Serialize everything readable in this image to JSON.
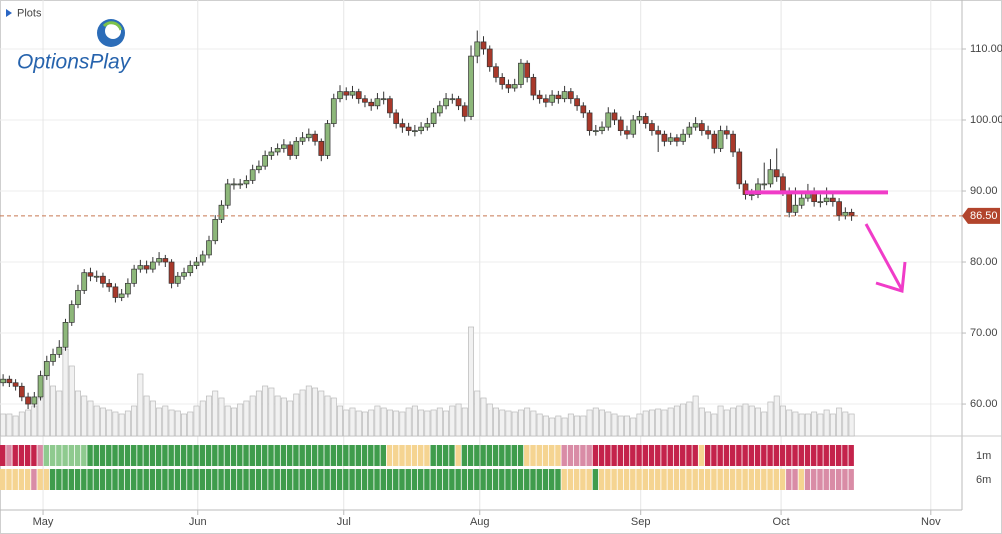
{
  "chart_data": {
    "type": "candlestick",
    "menu": "Plots",
    "logo": "OptionsPlay",
    "xlim": [
      -0.5,
      153.7
    ],
    "xticks": [
      {
        "value": 6.4,
        "label": "May"
      },
      {
        "value": 31.2,
        "label": "Jun"
      },
      {
        "value": 54.6,
        "label": "Jul"
      },
      {
        "value": 76.4,
        "label": "Aug"
      },
      {
        "value": 102.2,
        "label": "Sep"
      },
      {
        "value": 124.7,
        "label": "Oct"
      },
      {
        "value": 148.7,
        "label": "Nov"
      }
    ],
    "ylim": [
      55.5,
      116.9
    ],
    "yticks": [
      {
        "value": 60,
        "label": "60.00"
      },
      {
        "value": 70,
        "label": "70.00"
      },
      {
        "value": 80,
        "label": "80.00"
      },
      {
        "value": 90,
        "label": "90.00"
      },
      {
        "value": 100,
        "label": "100.00"
      },
      {
        "value": 110,
        "label": "110.00"
      }
    ],
    "grid": true,
    "up_color": "#8db77a",
    "down_color": "#a8382a",
    "last_price": {
      "value": 86.5,
      "label": "86.50"
    },
    "resistance": 89.8,
    "open": [
      63,
      63.5,
      63,
      62.5,
      61,
      60,
      61,
      64,
      66,
      67,
      68,
      71.5,
      74,
      76,
      78.5,
      78,
      78,
      77,
      76.5,
      75,
      75.5,
      77,
      79,
      79.5,
      79,
      80,
      80.5,
      80,
      77,
      78,
      78.5,
      79.5,
      80,
      81,
      83,
      86,
      88,
      91,
      91,
      91,
      91.5,
      93,
      93.5,
      95,
      95.5,
      96,
      96.5,
      95,
      97,
      97.5,
      98,
      97,
      95,
      99.5,
      103,
      104,
      103.5,
      104,
      103,
      102.5,
      102,
      103,
      103,
      101,
      99.5,
      99,
      98.5,
      98.5,
      99,
      99.5,
      101,
      102,
      103,
      103,
      102,
      100.5,
      109,
      111,
      110,
      107.5,
      106,
      105,
      104.5,
      105,
      108,
      106,
      103.5,
      103,
      102.5,
      103.5,
      103,
      104,
      103,
      102,
      101,
      98.5,
      98.5,
      99,
      101,
      100,
      98.5,
      98,
      100,
      100.5,
      99.5,
      98.5,
      98,
      97,
      97.5,
      97,
      98,
      99,
      99.5,
      98.5,
      98,
      96,
      98.5,
      98,
      95.5,
      91,
      89.5,
      89.5,
      91,
      91,
      93,
      92,
      90,
      87,
      88,
      89,
      90,
      88.5,
      88.5,
      89,
      88.5,
      86.5,
      87
    ],
    "high": [
      64.2,
      64,
      63.5,
      63,
      61.6,
      61.7,
      64.7,
      66.8,
      67.8,
      69,
      72,
      74.6,
      76.8,
      79,
      79.2,
      78.8,
      78.5,
      77.6,
      77,
      76.2,
      77.7,
      79.6,
      80.3,
      80.2,
      80.7,
      81.4,
      81,
      80.4,
      78.6,
      79.2,
      80.2,
      80.7,
      81.6,
      83.7,
      86.6,
      88.7,
      91.7,
      91.8,
      91.7,
      92.2,
      93.7,
      94.3,
      95.7,
      96.2,
      96.7,
      97.3,
      97,
      97.6,
      98.3,
      98.8,
      98.5,
      97.4,
      100,
      103.7,
      104.9,
      104.6,
      104.8,
      104.4,
      103.5,
      103,
      103.8,
      104,
      103.4,
      101.5,
      100.2,
      99.6,
      99.3,
      99.7,
      100.3,
      101.7,
      102.7,
      103.8,
      103.7,
      103.4,
      102.5,
      110.5,
      112.6,
      111.8,
      110.5,
      108,
      106.6,
      105.7,
      105.8,
      108.6,
      108.4,
      106.5,
      104.2,
      103.6,
      104.2,
      104.1,
      104.8,
      104.5,
      103.5,
      102.5,
      101.4,
      99.3,
      99.8,
      101.8,
      101.5,
      100.5,
      99.2,
      100.7,
      101.3,
      101,
      100,
      99.2,
      98.5,
      98.2,
      98,
      98.7,
      99.7,
      100.4,
      100,
      99.2,
      98.5,
      99.2,
      99.2,
      98.5,
      96,
      91.5,
      90.3,
      91.8,
      94,
      94.5,
      96,
      92.5,
      90.5,
      90.5,
      89.8,
      91,
      90.5,
      89.5,
      90.5,
      89.6,
      89,
      87.7,
      87.5
    ],
    "low": [
      62.5,
      62.4,
      61.9,
      60.4,
      59.3,
      59.5,
      60.5,
      63.4,
      65.4,
      66.5,
      67.5,
      71,
      73.5,
      75.5,
      77.3,
      77.2,
      76.4,
      75.8,
      74.3,
      74.5,
      75,
      76.5,
      78.5,
      78.4,
      78.5,
      79.5,
      79.3,
      76.3,
      76.5,
      77.5,
      78,
      79,
      79.5,
      80.5,
      82.5,
      85.5,
      87.5,
      90.2,
      90.3,
      90.4,
      91,
      92.5,
      93,
      94.4,
      95,
      95.4,
      94.4,
      94.5,
      96.5,
      97,
      96.4,
      94.2,
      94.5,
      99,
      102.5,
      102.8,
      103,
      102.3,
      101.8,
      101.3,
      101.5,
      102.2,
      100.3,
      98.8,
      98.2,
      97.8,
      97.7,
      98,
      98.5,
      99,
      100.5,
      101.5,
      102.3,
      101.4,
      99.8,
      100,
      108,
      109.2,
      106.8,
      105.3,
      104.3,
      103.8,
      104,
      104.5,
      105.3,
      102.8,
      102.3,
      101.8,
      102,
      102.3,
      102.5,
      102.3,
      101.3,
      100.3,
      97.8,
      97.8,
      98,
      98.5,
      99.3,
      97.8,
      97.3,
      97.5,
      99.5,
      98.8,
      97.8,
      95.5,
      96.3,
      96.5,
      96.3,
      96.5,
      97.5,
      98.5,
      97.8,
      97.3,
      95.3,
      95.5,
      97.3,
      94.8,
      90.3,
      88.8,
      88.7,
      89,
      90.2,
      90.5,
      91.3,
      89.3,
      86.3,
      86.5,
      87.5,
      88.5,
      87.8,
      87.7,
      88,
      87.8,
      85.8,
      86,
      85.8
    ],
    "close": [
      63.5,
      63,
      62.5,
      61,
      60,
      61,
      64,
      66,
      67,
      68,
      71.5,
      74,
      76,
      78.5,
      78,
      78,
      77,
      76.5,
      75,
      75.5,
      77,
      79,
      79.5,
      79,
      80,
      80.5,
      80,
      77,
      78,
      78.5,
      79.5,
      80,
      81,
      83,
      86,
      88,
      91,
      91,
      91,
      91.5,
      93,
      93.5,
      95,
      95.5,
      96,
      96.5,
      95,
      97,
      97.5,
      98,
      97,
      95,
      99.5,
      103,
      104,
      103.5,
      104,
      103,
      102.5,
      102,
      103,
      103,
      101,
      99.5,
      99,
      98.5,
      98.5,
      99,
      99.5,
      101,
      102,
      103,
      103,
      102,
      100.5,
      109,
      111,
      110,
      107.5,
      106,
      105,
      104.5,
      105,
      108,
      106,
      103.5,
      103,
      102.5,
      103.5,
      103,
      104,
      103,
      102,
      101,
      98.5,
      98.5,
      99,
      101,
      100,
      98.5,
      98,
      100,
      100.5,
      99.5,
      98.5,
      98,
      97,
      97.5,
      97,
      98,
      99,
      99.5,
      98.5,
      98,
      96,
      98.5,
      98,
      95.5,
      91,
      89.5,
      89.5,
      91,
      91,
      93,
      92,
      90,
      87,
      88,
      89,
      90,
      88.5,
      88.5,
      89,
      88.5,
      86.5,
      87,
      86.5
    ],
    "volume": [
      22,
      22,
      20,
      24,
      26,
      30,
      38,
      60,
      50,
      45,
      87,
      70,
      45,
      40,
      35,
      30,
      28,
      26,
      24,
      22,
      25,
      30,
      62,
      40,
      35,
      28,
      30,
      26,
      25,
      22,
      24,
      30,
      35,
      40,
      45,
      38,
      30,
      28,
      32,
      35,
      40,
      45,
      50,
      48,
      40,
      38,
      35,
      42,
      46,
      50,
      48,
      45,
      40,
      38,
      30,
      26,
      28,
      25,
      24,
      26,
      30,
      28,
      26,
      25,
      24,
      28,
      30,
      26,
      25,
      26,
      28,
      25,
      30,
      32,
      28,
      109,
      45,
      38,
      32,
      28,
      26,
      25,
      24,
      26,
      28,
      25,
      22,
      20,
      18,
      20,
      18,
      22,
      20,
      20,
      26,
      28,
      26,
      24,
      22,
      20,
      20,
      18,
      22,
      25,
      26,
      27,
      26,
      28,
      30,
      32,
      34,
      40,
      28,
      24,
      22,
      30,
      26,
      28,
      30,
      32,
      30,
      28,
      24,
      34,
      40,
      30,
      26,
      24,
      22,
      22,
      24,
      22,
      26,
      22,
      28,
      24,
      22
    ],
    "palette": {
      "R": "#c4234b",
      "P": "#d98ca6",
      "L": "#8fca8f",
      "G": "#3f9c4c",
      "Y": "#f5d491"
    },
    "heat": [
      {
        "name": "1m",
        "cells": "RPRRRRPLLLLLLLGGGGGGGGGGGGGGGGGGGGGGGGGGGGGGGGGGGGGGGGGGGGGGGGYYYYYYYGGGGYGGGGGGGGGGYYYYYYPPPPPRRRRRRRRRRRRRRRRRYRRRRRRRRRRRRRRRRRRRRRRRR"
      },
      {
        "name": "6m",
        "cells": "YYYYYPYYGGGGGGGGGGGGGGGGGGGGGGGGGGGGGGGGGGGGGGGGGGGGGGGGGGGGGGGGGGGGGGGGGGGGGGGGGGGGGGGGGGYYYYYGYYYYYYYYYYYYYYYYYYYYYYYYYYYYYYPPYPPPPPPPP"
      }
    ]
  }
}
